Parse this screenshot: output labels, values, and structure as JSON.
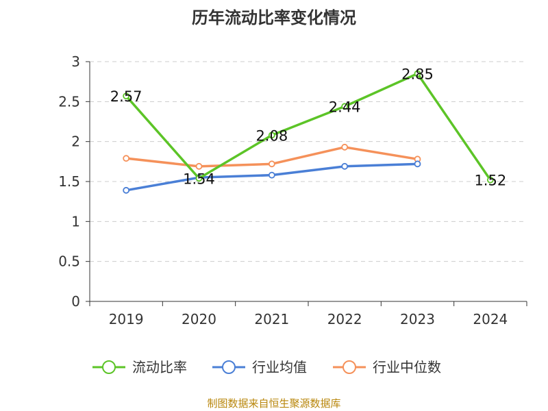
{
  "chart_data": {
    "type": "line",
    "title": "历年流动比率变化情况",
    "categories": [
      "2019",
      "2020",
      "2021",
      "2022",
      "2023",
      "2024"
    ],
    "y_ticks": [
      "0",
      "0.5",
      "1",
      "1.5",
      "2",
      "2.5",
      "3"
    ],
    "ylim": [
      0,
      3
    ],
    "grid": "horizontal dashed",
    "legend_position": "bottom",
    "series": [
      {
        "name": "流动比率",
        "color": "#5cc427",
        "values": [
          2.57,
          1.54,
          2.08,
          2.44,
          2.85,
          1.52
        ],
        "labels": [
          "2.57",
          "1.54",
          "2.08",
          "2.44",
          "2.85",
          "1.52"
        ]
      },
      {
        "name": "行业均值",
        "color": "#4a7fd6",
        "values": [
          1.39,
          1.55,
          1.58,
          1.69,
          1.72,
          null
        ]
      },
      {
        "name": "行业中位数",
        "color": "#f5915a",
        "values": [
          1.79,
          1.69,
          1.72,
          1.93,
          1.78,
          null
        ]
      }
    ]
  },
  "footer": {
    "source": "制图数据来自恒生聚源数据库"
  }
}
